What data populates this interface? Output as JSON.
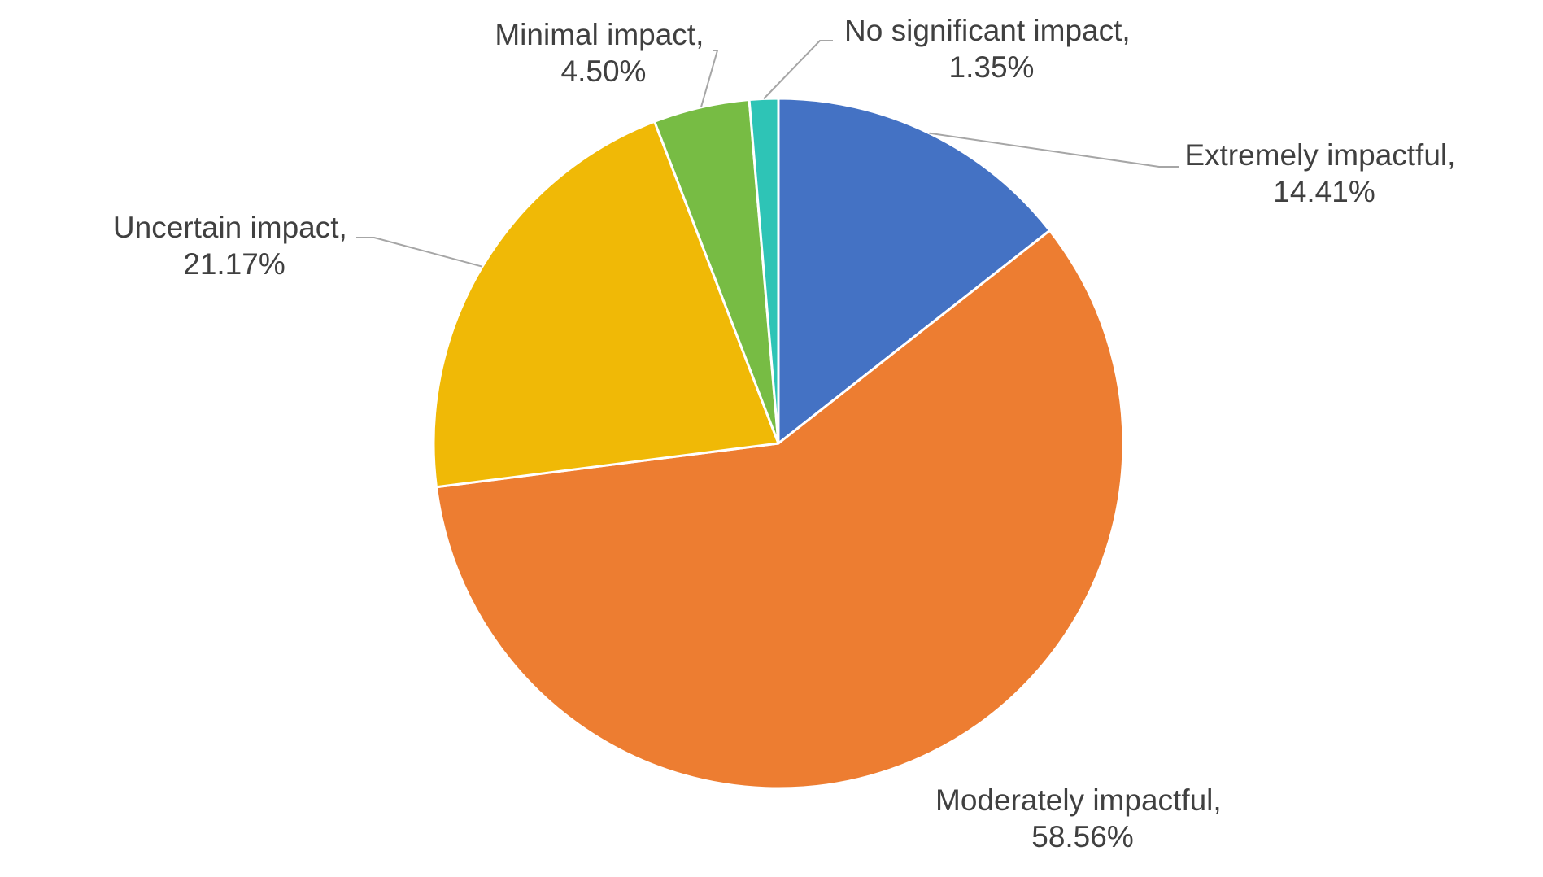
{
  "chart_data": {
    "type": "pie",
    "title": "",
    "start_angle_deg": 0,
    "direction": "clockwise",
    "slices": [
      {
        "key": "extremely",
        "label": "Extremely impactful,",
        "value": 14.41,
        "value_label": "14.41%",
        "color": "#4472C4"
      },
      {
        "key": "moderately",
        "label": "Moderately impactful,",
        "value": 58.56,
        "value_label": "58.56%",
        "color": "#ED7D31"
      },
      {
        "key": "uncertain",
        "label": "Uncertain impact,",
        "value": 21.17,
        "value_label": "21.17%",
        "color": "#F0B906"
      },
      {
        "key": "minimal",
        "label": "Minimal impact,",
        "value": 4.5,
        "value_label": "4.50%",
        "color": "#77BC44"
      },
      {
        "key": "no-significant",
        "label": "No significant impact,",
        "value": 1.35,
        "value_label": "1.35%",
        "color": "#2EC4B6"
      }
    ]
  }
}
